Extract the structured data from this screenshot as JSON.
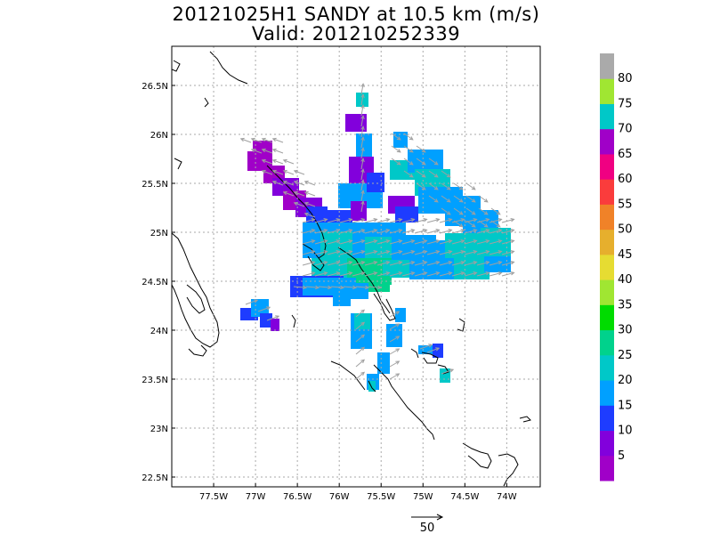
{
  "title_line1": "20121025H1 SANDY at 10.5 km (m/s)",
  "title_line2": "Valid: 201210252339",
  "map": {
    "lon_range": [
      -78.0,
      -73.6
    ],
    "lat_range": [
      22.4,
      26.9
    ],
    "lon_ticks": [
      "77.5W",
      "77W",
      "76.5W",
      "76W",
      "75.5W",
      "75W",
      "74.5W",
      "74W"
    ],
    "lat_ticks": [
      "26.5N",
      "26N",
      "25.5N",
      "25N",
      "24.5N",
      "24N",
      "23.5N",
      "23N",
      "22.5N"
    ],
    "grid": "dotted"
  },
  "colorbar": {
    "labels": [
      "5",
      "10",
      "15",
      "20",
      "25",
      "30",
      "35",
      "40",
      "45",
      "50",
      "55",
      "60",
      "65",
      "70",
      "75",
      "80"
    ],
    "colors": [
      "#a000c8",
      "#8200dc",
      "#1e3cff",
      "#00a0ff",
      "#00c8c8",
      "#00d28c",
      "#00dc00",
      "#a0e632",
      "#e6dc32",
      "#e6af2d",
      "#f08228",
      "#fa3c3c",
      "#f00082",
      "#a000c8",
      "#00c8c8",
      "#a0e632",
      "#aaaaaa"
    ]
  },
  "reference_vector": {
    "label": "50"
  }
}
